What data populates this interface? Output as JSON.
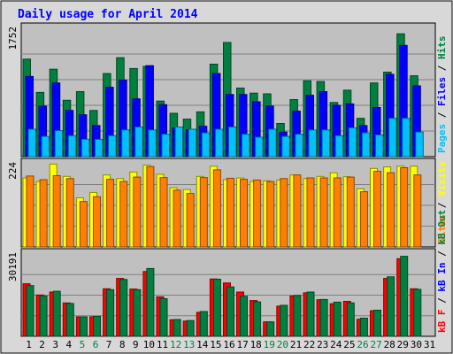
{
  "chart_data": {
    "type": "bar",
    "title": "Daily usage for April 2014",
    "days": [
      "1",
      "2",
      "3",
      "4",
      "5",
      "6",
      "7",
      "8",
      "9",
      "10",
      "11",
      "12",
      "13",
      "14",
      "15",
      "16",
      "17",
      "18",
      "19",
      "20",
      "21",
      "22",
      "23",
      "24",
      "25",
      "26",
      "27",
      "28",
      "29",
      "30",
      "31"
    ],
    "weekend_days": [
      "5",
      "6",
      "12",
      "13",
      "19",
      "20",
      "26",
      "27"
    ],
    "panels": [
      {
        "name": "hits-files-pages",
        "ylabel_max": "1752",
        "ymax": 1752,
        "series": [
          {
            "name": "Hits",
            "color": "#008040",
            "values": [
              1350,
              890,
              1210,
              780,
              900,
              640,
              1150,
              1370,
              1220,
              1250,
              770,
              600,
              520,
              620,
              1280,
              1580,
              950,
              880,
              870,
              460,
              790,
              1050,
              1040,
              750,
              920,
              530,
              1020,
              1170,
              1700,
              1120,
              0
            ]
          },
          {
            "name": "Files",
            "color": "#0000ff",
            "values": [
              1110,
              700,
              1020,
              640,
              580,
              430,
              960,
              1060,
              800,
              1260,
              720,
              400,
              370,
              420,
              1150,
              860,
              860,
              760,
              700,
              340,
              630,
              850,
              900,
              710,
              730,
              430,
              680,
              1140,
              1540,
              980,
              0
            ]
          },
          {
            "name": "Pages",
            "color": "#00c0ff",
            "values": [
              380,
              280,
              360,
              290,
              240,
              240,
              290,
              370,
              410,
              370,
              310,
              410,
              380,
              330,
              380,
              410,
              310,
              270,
              380,
              280,
              310,
              370,
              370,
              290,
              400,
              330,
              300,
              530,
              530,
              340,
              0
            ]
          }
        ],
        "legend": [
          {
            "text": "Pages",
            "color": "#00c0ff"
          },
          {
            "text": " / ",
            "color": "#000000"
          },
          {
            "text": "Files",
            "color": "#0000ff"
          },
          {
            "text": " / ",
            "color": "#000000"
          },
          {
            "text": "Hits",
            "color": "#008040"
          }
        ]
      },
      {
        "name": "visits-sites",
        "ylabel_max": "224",
        "ymax": 224,
        "series": [
          {
            "name": "Visits",
            "color": "#ffff00",
            "values": [
              190,
              180,
              228,
              194,
              135,
              150,
              198,
              188,
              206,
              225,
              200,
              163,
              158,
              194,
              222,
              185,
              190,
              180,
              182,
              184,
              198,
              188,
              194,
              204,
              193,
              160,
              216,
              220,
              222,
              222,
              0
            ]
          },
          {
            "name": "Sites",
            "color": "#ff8000",
            "values": [
              195,
              185,
              196,
              188,
              125,
              138,
              186,
              180,
              192,
              221,
              191,
              156,
              147,
              191,
              212,
              189,
              186,
              184,
              180,
              188,
              198,
              190,
              190,
              190,
              192,
              152,
              208,
              204,
              218,
              198,
              0
            ]
          }
        ],
        "legend": [
          {
            "text": "Sites",
            "color": "#ff8000"
          },
          {
            "text": " / ",
            "color": "#000000"
          },
          {
            "text": "Visits",
            "color": "#ffff00"
          }
        ]
      },
      {
        "name": "kbf-kbin-kbout",
        "ylabel_max": "30191",
        "ymax": 30191,
        "series": [
          {
            "name": "kB F",
            "color": "#ff0000",
            "values": [
              19700,
              15500,
              16600,
              12500,
              7300,
              7300,
              17800,
              21700,
              17700,
              24300,
              14800,
              6200,
              5700,
              9000,
              21500,
              20000,
              16600,
              13400,
              5400,
              11300,
              15100,
              16300,
              13700,
              12200,
              13100,
              6400,
              9600,
              21700,
              29100,
              17800,
              0
            ]
          },
          {
            "name": "kB In",
            "color": "#0000ff",
            "values": [
              0,
              0,
              0,
              0,
              0,
              0,
              0,
              0,
              0,
              0,
              0,
              0,
              0,
              0,
              0,
              0,
              0,
              0,
              0,
              0,
              0,
              0,
              0,
              0,
              0,
              0,
              0,
              0,
              0,
              0,
              0
            ]
          },
          {
            "name": "kB Out",
            "color": "#008040",
            "values": [
              19000,
              15100,
              16900,
              12300,
              7300,
              7500,
              17500,
              21300,
              17500,
              25400,
              14100,
              6300,
              5900,
              9300,
              21400,
              18500,
              15000,
              12900,
              5400,
              11600,
              15300,
              16600,
              13800,
              12800,
              12500,
              6800,
              9800,
              22300,
              30000,
              17600,
              0
            ]
          }
        ],
        "legend": [
          {
            "text": "kB F",
            "color": "#ff0000"
          },
          {
            "text": " / ",
            "color": "#000000"
          },
          {
            "text": "kB In",
            "color": "#0000ff"
          },
          {
            "text": " / ",
            "color": "#000000"
          },
          {
            "text": "kB Out",
            "color": "#008040"
          }
        ]
      }
    ]
  }
}
